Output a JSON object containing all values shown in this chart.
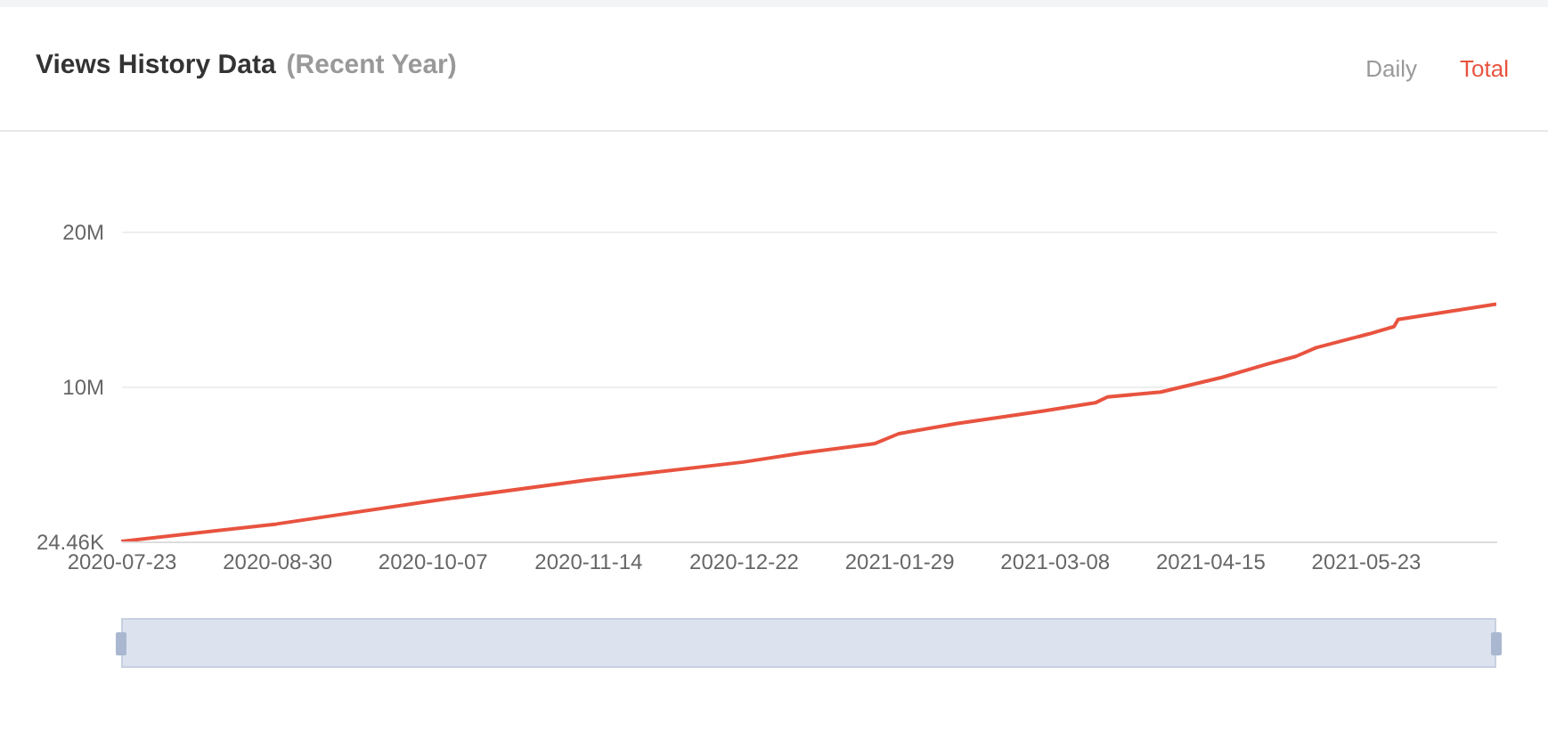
{
  "chart_data": {
    "type": "line",
    "title": "Views History Data",
    "subtitle": "(Recent Year)",
    "annotations": [
      "Daily",
      "Total"
    ],
    "x": [
      "2020-07-23",
      "2020-08-30",
      "2020-10-07",
      "2020-11-14",
      "2020-12-22",
      "2021-01-05",
      "2021-01-23",
      "2021-01-29",
      "2021-02-12",
      "2021-03-05",
      "2021-03-18",
      "2021-03-21",
      "2021-04-03",
      "2021-04-18",
      "2021-04-29",
      "2021-05-06",
      "2021-05-11",
      "2021-05-24",
      "2021-05-30",
      "2021-05-31",
      "2021-06-24"
    ],
    "series": [
      {
        "color": "#e8533f",
        "values": [
          24460,
          1150000,
          2640000,
          3990000,
          5140000,
          5710000,
          6320000,
          6970000,
          7620000,
          8420000,
          8960000,
          9340000,
          9650000,
          10600000,
          11450000,
          11950000,
          12520000,
          13410000,
          13870000,
          14330000,
          15320000
        ]
      }
    ],
    "xlim": [
      "2020-07-23",
      "2021-06-24"
    ],
    "xticks": [
      "2020-07-23",
      "2020-08-30",
      "2020-10-07",
      "2020-11-14",
      "2020-12-22",
      "2021-01-29",
      "2021-03-08",
      "2021-04-15",
      "2021-05-23"
    ],
    "ylim": [
      24460,
      20000000
    ],
    "yticks": [
      {
        "value": 24460,
        "label": "24.46K"
      },
      {
        "value": 10000000,
        "label": "10M"
      },
      {
        "value": 20000000,
        "label": "20M"
      }
    ],
    "grid": "y"
  }
}
